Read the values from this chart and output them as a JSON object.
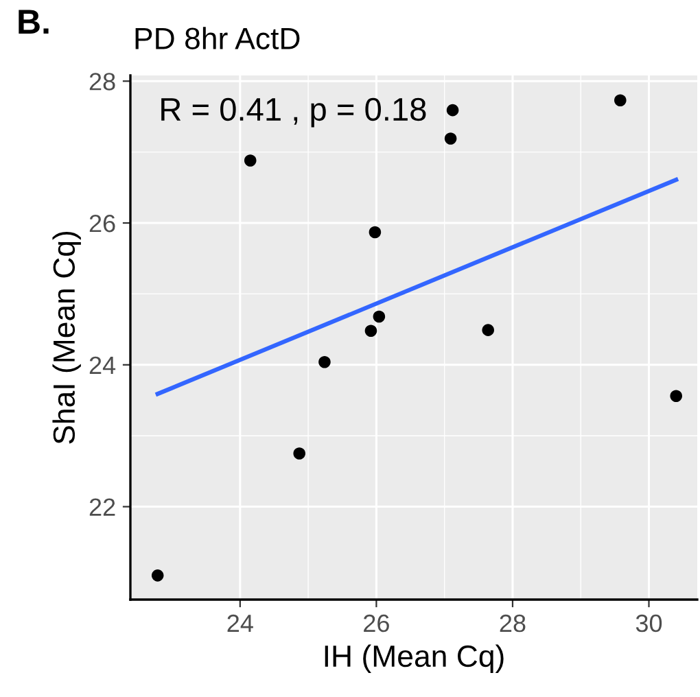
{
  "chart_data": {
    "type": "scatter",
    "title": "PD 8hr ActD",
    "xlabel": "IH (Mean Cq)",
    "ylabel": "ShaI (Mean Cq)",
    "annotations": [
      "B.",
      "R = 0.41 , p = 0.18"
    ],
    "xlim": [
      22.39,
      30.71
    ],
    "xticks": [
      24,
      26,
      28,
      30
    ],
    "ylim": [
      20.69,
      28.08
    ],
    "yticks": [
      22,
      24,
      26,
      28
    ],
    "grid": true,
    "series": [
      {
        "marker": "circle",
        "color": "#000000",
        "x": [
          22.79,
          24.15,
          24.87,
          25.24,
          25.92,
          26.04,
          25.98,
          27.12,
          27.09,
          27.64,
          29.58,
          30.4
        ],
        "values": [
          21.03,
          26.88,
          22.75,
          24.04,
          24.48,
          24.68,
          25.87,
          27.59,
          27.19,
          24.49,
          27.73,
          23.56
        ]
      },
      {
        "type": "line",
        "marker": "none",
        "color": "#3366ff",
        "x": [
          22.79,
          30.4
        ],
        "values": [
          23.59,
          26.61
        ]
      }
    ]
  }
}
